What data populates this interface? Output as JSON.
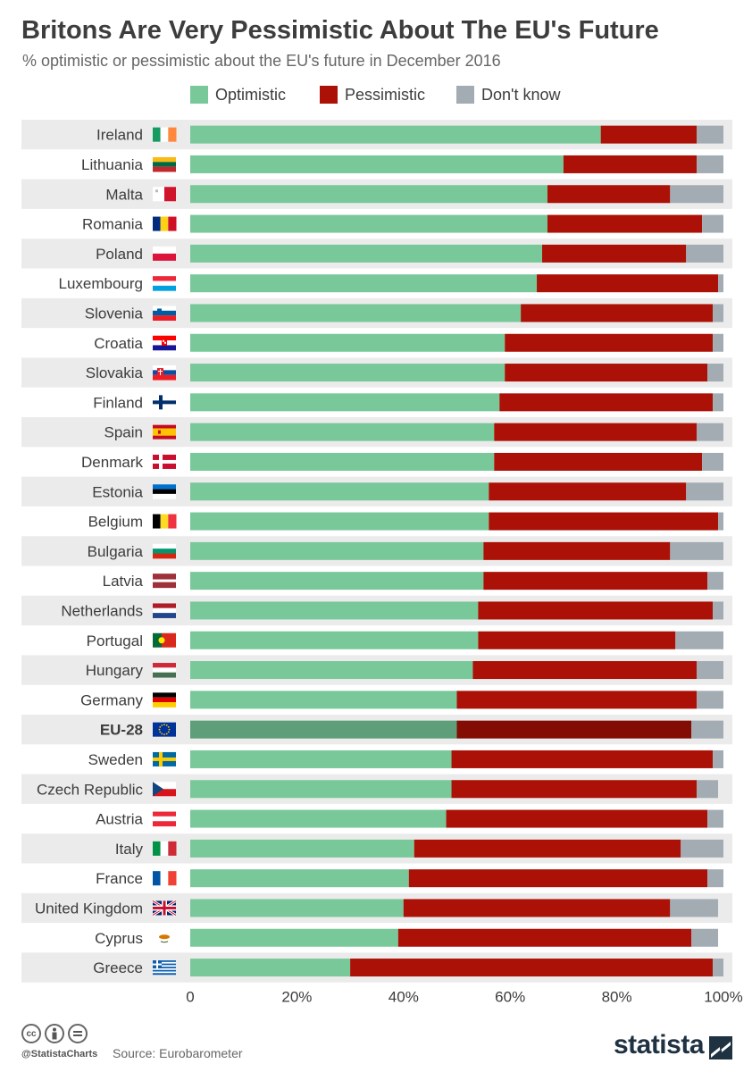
{
  "title": "Britons Are Very Pessimistic About The EU's Future",
  "subtitle": "% optimistic or pessimistic about the EU's future in December 2016",
  "colors": {
    "optimistic": "#78c89a",
    "pessimistic": "#ab1106",
    "dont_know": "#a3abb3",
    "highlight_optimistic": "#5e9e79",
    "highlight_pessimistic": "#830d05",
    "row_band": "#ebebeb"
  },
  "chart_data": {
    "type": "bar",
    "orientation": "horizontal",
    "stacked": true,
    "categories": [
      "Ireland",
      "Lithuania",
      "Malta",
      "Romania",
      "Poland",
      "Luxembourg",
      "Slovenia",
      "Croatia",
      "Slovakia",
      "Finland",
      "Spain",
      "Denmark",
      "Estonia",
      "Belgium",
      "Bulgaria",
      "Latvia",
      "Netherlands",
      "Portugal",
      "Hungary",
      "Germany",
      "EU-28",
      "Sweden",
      "Czech Republic",
      "Austria",
      "Italy",
      "France",
      "United Kingdom",
      "Cyprus",
      "Greece"
    ],
    "highlight_category": "EU-28",
    "series": [
      {
        "name": "Optimistic",
        "values": [
          77,
          70,
          67,
          67,
          66,
          65,
          62,
          59,
          59,
          58,
          57,
          57,
          56,
          56,
          55,
          55,
          54,
          54,
          53,
          50,
          50,
          49,
          49,
          48,
          42,
          41,
          40,
          39,
          30
        ]
      },
      {
        "name": "Pessimistic",
        "values": [
          18,
          25,
          23,
          29,
          27,
          34,
          36,
          39,
          38,
          40,
          38,
          39,
          37,
          43,
          35,
          42,
          44,
          37,
          42,
          45,
          44,
          49,
          46,
          49,
          50,
          56,
          50,
          55,
          68
        ]
      },
      {
        "name": "Don't know",
        "values": [
          5,
          5,
          10,
          4,
          7,
          1,
          2,
          2,
          3,
          2,
          5,
          4,
          7,
          1,
          10,
          3,
          2,
          9,
          5,
          5,
          6,
          2,
          4,
          3,
          8,
          3,
          9,
          5,
          2
        ]
      }
    ],
    "xlim": [
      0,
      100
    ],
    "xticks": [
      "0",
      "20%",
      "40%",
      "60%",
      "80%",
      "100%"
    ],
    "legend_position": "top-center",
    "grid": false
  },
  "flags": [
    "flag-ireland",
    "flag-lithuania",
    "flag-malta",
    "flag-romania",
    "flag-poland",
    "flag-luxembourg",
    "flag-slovenia",
    "flag-croatia",
    "flag-slovakia",
    "flag-finland",
    "flag-spain",
    "flag-denmark",
    "flag-estonia",
    "flag-belgium",
    "flag-bulgaria",
    "flag-latvia",
    "flag-netherlands",
    "flag-portugal",
    "flag-hungary",
    "flag-germany",
    "flag-eu",
    "flag-sweden",
    "flag-czech-republic",
    "flag-austria",
    "flag-italy",
    "flag-france",
    "flag-united-kingdom",
    "flag-cyprus",
    "flag-greece"
  ],
  "footer": {
    "handle": "@StatistaCharts",
    "source": "Source: Eurobarometer",
    "brand": "statista"
  }
}
